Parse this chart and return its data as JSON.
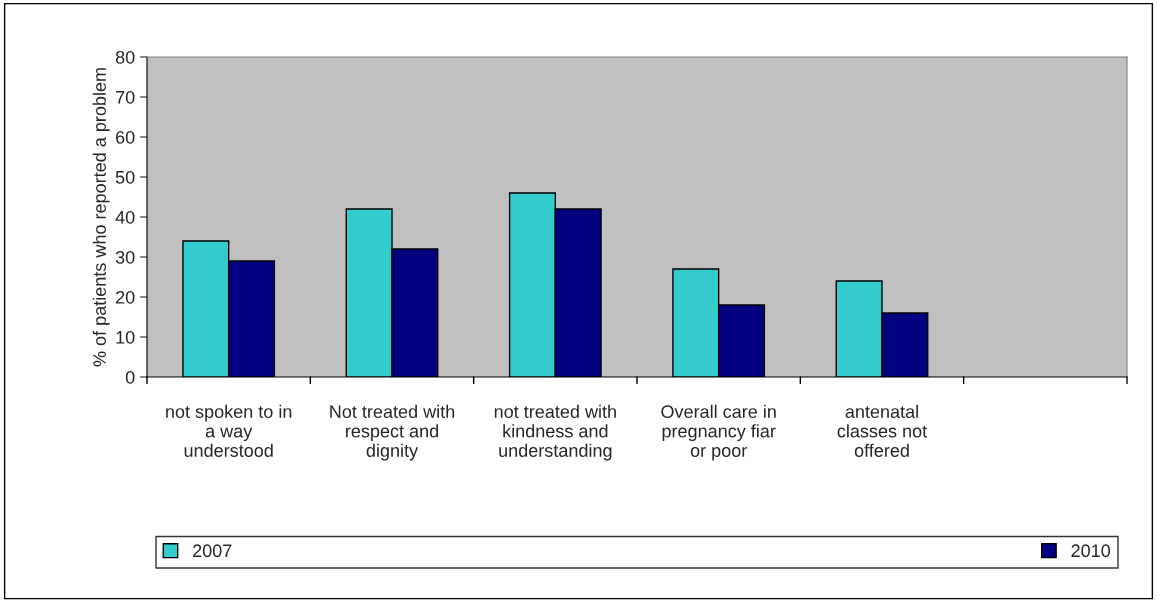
{
  "chart_data": {
    "type": "bar",
    "ylabel": "% of patients who reported a problem",
    "categories": [
      "not spoken to in\na way\nunderstood",
      "Not treated with\nrespect and\ndignity",
      "not treated with\nkindness and\nunderstanding",
      "Overall care in\npregnancy fiar\nor poor",
      "antenatal\nclasses not\noffered",
      null
    ],
    "series": [
      {
        "name": "2007",
        "color": "#33cccc",
        "values": [
          34,
          42,
          46,
          27,
          24,
          null
        ]
      },
      {
        "name": "2010",
        "color": "#000080",
        "values": [
          29,
          32,
          42,
          18,
          16,
          null
        ]
      }
    ],
    "ylim": [
      0,
      80
    ],
    "yticks": [
      0,
      10,
      20,
      30,
      40,
      50,
      60,
      70,
      80
    ],
    "legend": "bottom"
  }
}
